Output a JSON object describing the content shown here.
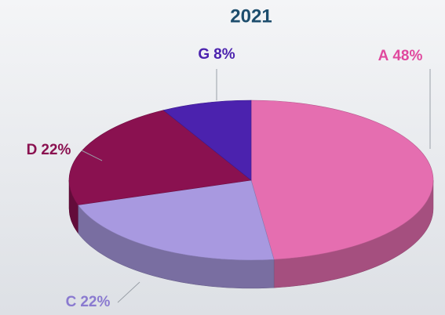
{
  "chart_data": {
    "type": "pie",
    "title": "2021",
    "categories": [
      "A",
      "C",
      "D",
      "G"
    ],
    "values": [
      48,
      22,
      22,
      8
    ],
    "value_labels": [
      "48%",
      "22%",
      "22%",
      "8%"
    ],
    "colors": [
      "#e56eb0",
      "#a899e0",
      "#8a1150",
      "#4b22ae"
    ],
    "label_colors": [
      "#e0489e",
      "#8a7ad0",
      "#8a1150",
      "#4b22ae"
    ]
  }
}
